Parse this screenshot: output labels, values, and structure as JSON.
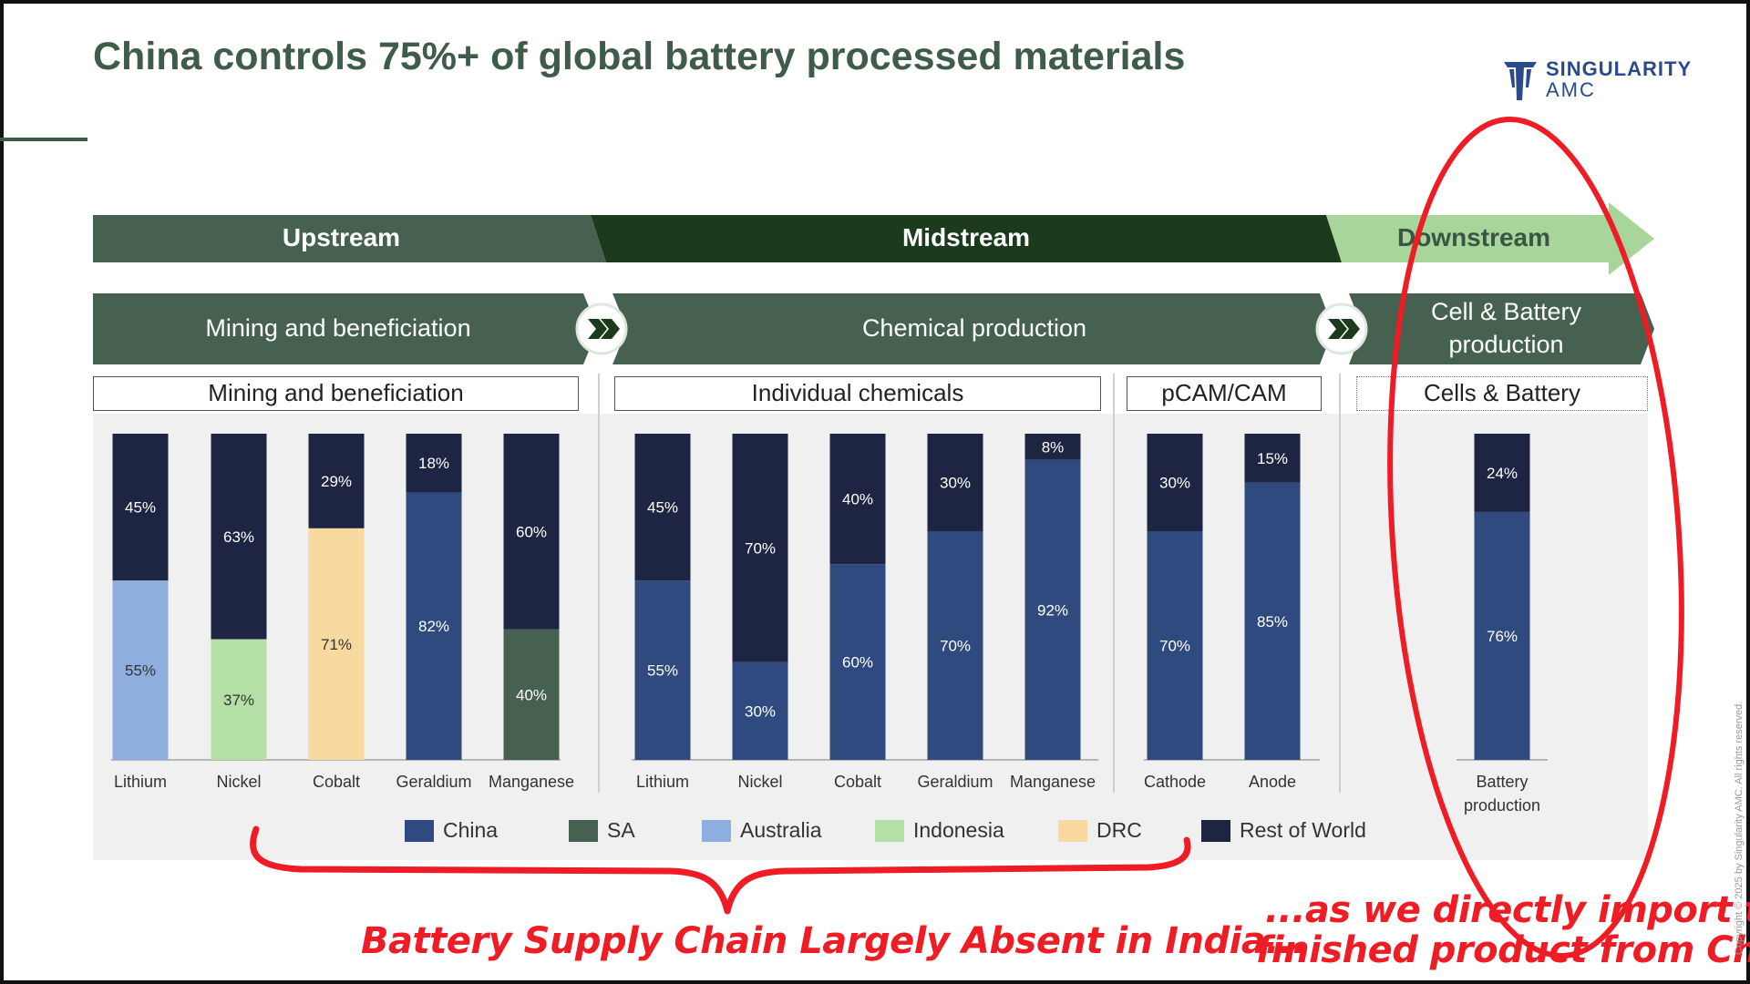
{
  "title": "China controls 75%+ of global battery processed materials",
  "logo": {
    "name": "SINGULARITY",
    "sub": "AMC"
  },
  "stages": {
    "upstream": "Upstream",
    "midstream": "Midstream",
    "downstream": "Downstream"
  },
  "processes": {
    "mining": "Mining and beneficiation",
    "chemical": "Chemical production",
    "cell_line1": "Cell & Battery",
    "cell_line2": "production"
  },
  "groups": {
    "mining": "Mining and beneficiation",
    "chemicals": "Individual chemicals",
    "pcam": "pCAM/CAM",
    "cells": "Cells & Battery"
  },
  "colors": {
    "China": "#2e4a7f",
    "SA": "#46614f",
    "Australia": "#8eaedf",
    "Indonesia": "#b4dfa5",
    "DRC": "#f8d9a0",
    "Rest of World": "#1e2542",
    "upstream_bg": "#46614f",
    "midstream_bg": "#1c3a1c",
    "downstream_bg": "#a8d69a",
    "annotation": "#ee1c24"
  },
  "chart_data": {
    "type": "bar",
    "stacked": true,
    "title": "China controls 75%+ of global battery processed materials",
    "ylim": [
      0,
      100
    ],
    "unit": "%",
    "groups": [
      "Mining and beneficiation",
      "Individual chemicals",
      "pCAM/CAM",
      "Cells & Battery"
    ],
    "categories": [
      "Lithium",
      "Nickel",
      "Cobalt",
      "Geraldium",
      "Manganese",
      "Lithium",
      "Nickel",
      "Cobalt",
      "Geraldium",
      "Manganese",
      "Cathode",
      "Anode",
      "Battery production"
    ],
    "bars": [
      {
        "label": "Lithium",
        "group": "Mining and beneficiation",
        "segments": [
          {
            "series": "Australia",
            "value": 55,
            "label": "55%"
          },
          {
            "series": "Rest of World",
            "value": 45,
            "label": "45%"
          }
        ]
      },
      {
        "label": "Nickel",
        "group": "Mining and beneficiation",
        "segments": [
          {
            "series": "Indonesia",
            "value": 37,
            "label": "37%"
          },
          {
            "series": "Rest of World",
            "value": 63,
            "label": "63%"
          }
        ]
      },
      {
        "label": "Cobalt",
        "group": "Mining and beneficiation",
        "segments": [
          {
            "series": "DRC",
            "value": 71,
            "label": "71%"
          },
          {
            "series": "Rest of World",
            "value": 29,
            "label": "29%"
          }
        ]
      },
      {
        "label": "Geraldium",
        "group": "Mining and beneficiation",
        "segments": [
          {
            "series": "China",
            "value": 82,
            "label": "82%"
          },
          {
            "series": "Rest of World",
            "value": 18,
            "label": "18%"
          }
        ]
      },
      {
        "label": "Manganese",
        "group": "Mining and beneficiation",
        "segments": [
          {
            "series": "SA",
            "value": 40,
            "label": "40%"
          },
          {
            "series": "Rest of World",
            "value": 60,
            "label": "60%"
          }
        ]
      },
      {
        "label": "Lithium",
        "group": "Individual chemicals",
        "segments": [
          {
            "series": "China",
            "value": 55,
            "label": "55%"
          },
          {
            "series": "Rest of World",
            "value": 45,
            "label": "45%"
          }
        ]
      },
      {
        "label": "Nickel",
        "group": "Individual chemicals",
        "segments": [
          {
            "series": "China",
            "value": 30,
            "label": "30%"
          },
          {
            "series": "Rest of World",
            "value": 70,
            "label": "70%"
          }
        ]
      },
      {
        "label": "Cobalt",
        "group": "Individual chemicals",
        "segments": [
          {
            "series": "China",
            "value": 60,
            "label": "60%"
          },
          {
            "series": "Rest of World",
            "value": 40,
            "label": "40%"
          }
        ]
      },
      {
        "label": "Geraldium",
        "group": "Individual chemicals",
        "segments": [
          {
            "series": "China",
            "value": 70,
            "label": "70%"
          },
          {
            "series": "Rest of World",
            "value": 30,
            "label": "30%"
          }
        ]
      },
      {
        "label": "Manganese",
        "group": "Individual chemicals",
        "segments": [
          {
            "series": "China",
            "value": 92,
            "label": "92%"
          },
          {
            "series": "Rest of World",
            "value": 8,
            "label": "8%"
          }
        ]
      },
      {
        "label": "Cathode",
        "group": "pCAM/CAM",
        "segments": [
          {
            "series": "China",
            "value": 70,
            "label": "70%"
          },
          {
            "series": "Rest of World",
            "value": 30,
            "label": "30%"
          }
        ]
      },
      {
        "label": "Anode",
        "group": "pCAM/CAM",
        "segments": [
          {
            "series": "China",
            "value": 85,
            "label": "85%"
          },
          {
            "series": "Rest of World",
            "value": 15,
            "label": "15%"
          }
        ]
      },
      {
        "label": "Battery production",
        "group": "Cells & Battery",
        "segments": [
          {
            "series": "China",
            "value": 76,
            "label": "76%"
          },
          {
            "series": "Rest of World",
            "value": 24,
            "label": "24%"
          }
        ]
      }
    ],
    "legend": [
      "China",
      "SA",
      "Australia",
      "Indonesia",
      "DRC",
      "Rest of World"
    ],
    "legend_position": "bottom"
  },
  "legend_labels": [
    "China",
    "SA",
    "Australia",
    "Indonesia",
    "DRC",
    "Rest of World"
  ],
  "annotations": {
    "left": "Battery Supply Chain Largely Absent in India...",
    "right_line1": "...as we directly import the",
    "right_line2": "finished product from China"
  },
  "copyright": "Copyright © 2025 by Singularity AMC. All rights reserved."
}
